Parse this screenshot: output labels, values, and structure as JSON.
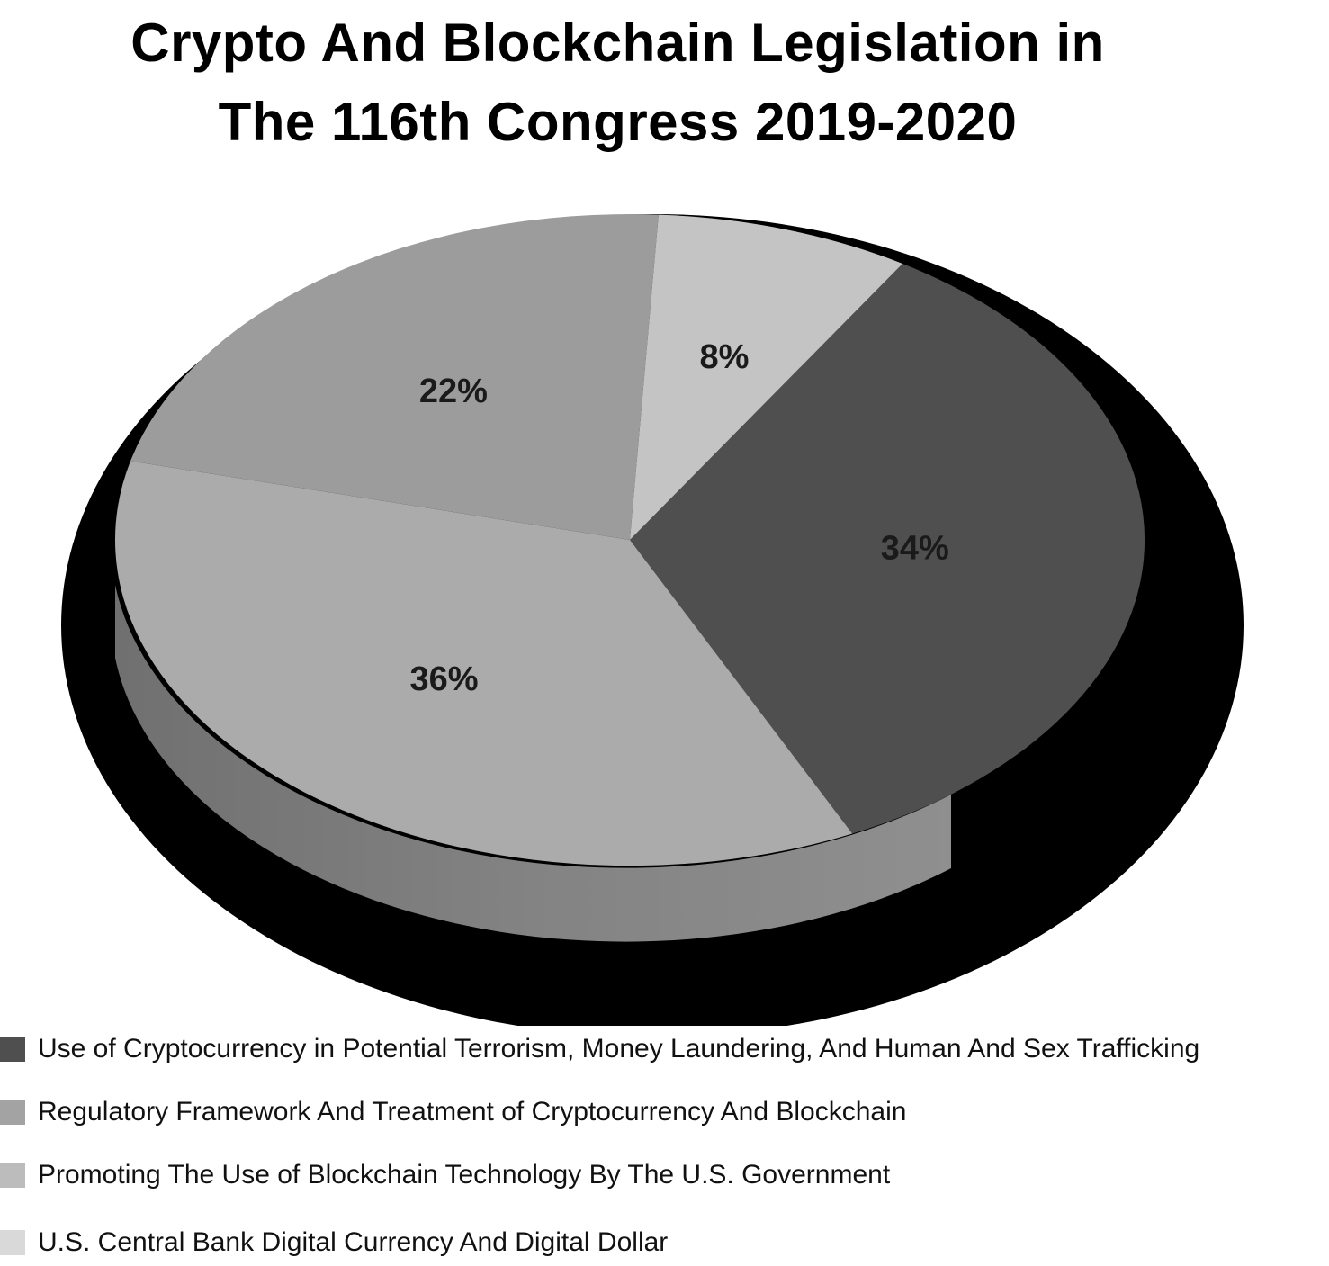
{
  "chart_data": {
    "type": "pie",
    "title": "Crypto And Blockchain Legislation in The 116th Congress 2019-2020",
    "title_lines": [
      "Crypto And Blockchain Legislation in",
      "The 116th Congress 2019-2020"
    ],
    "slices": [
      {
        "name": "Use of Cryptocurrency in Potential Terrorism, Money Laundering, And Human And Sex Trafficking",
        "value": 34,
        "label": "34%",
        "color": "#4f4f4f"
      },
      {
        "name": "Regulatory Framework And Treatment of Cryptocurrency And Blockchain",
        "value": 36,
        "label": "36%",
        "color": "#ababab"
      },
      {
        "name": "Promoting The Use of Blockchain Technology By The U.S. Government",
        "value": 22,
        "label": "22%",
        "color": "#9c9c9c"
      },
      {
        "name": "U.S. Central Bank Digital Currency And Digital Dollar",
        "value": 8,
        "label": "8%",
        "color": "#c4c4c4"
      }
    ],
    "legend": [
      {
        "label": "Use of Cryptocurrency in Potential Terrorism, Money Laundering, And Human And Sex Trafficking",
        "color": "#4f4f4f"
      },
      {
        "label": "Regulatory Framework And Treatment of Cryptocurrency And Blockchain",
        "color": "#a3a3a3"
      },
      {
        "label": "Promoting The Use of Blockchain Technology By The U.S. Government",
        "color": "#bcbcbc"
      },
      {
        "label": "U.S. Central Bank Digital Currency And Digital Dollar",
        "color": "#d9d9d9"
      }
    ],
    "legend_position": "bottom",
    "style": "3d",
    "background_shape_color": "#000000"
  }
}
